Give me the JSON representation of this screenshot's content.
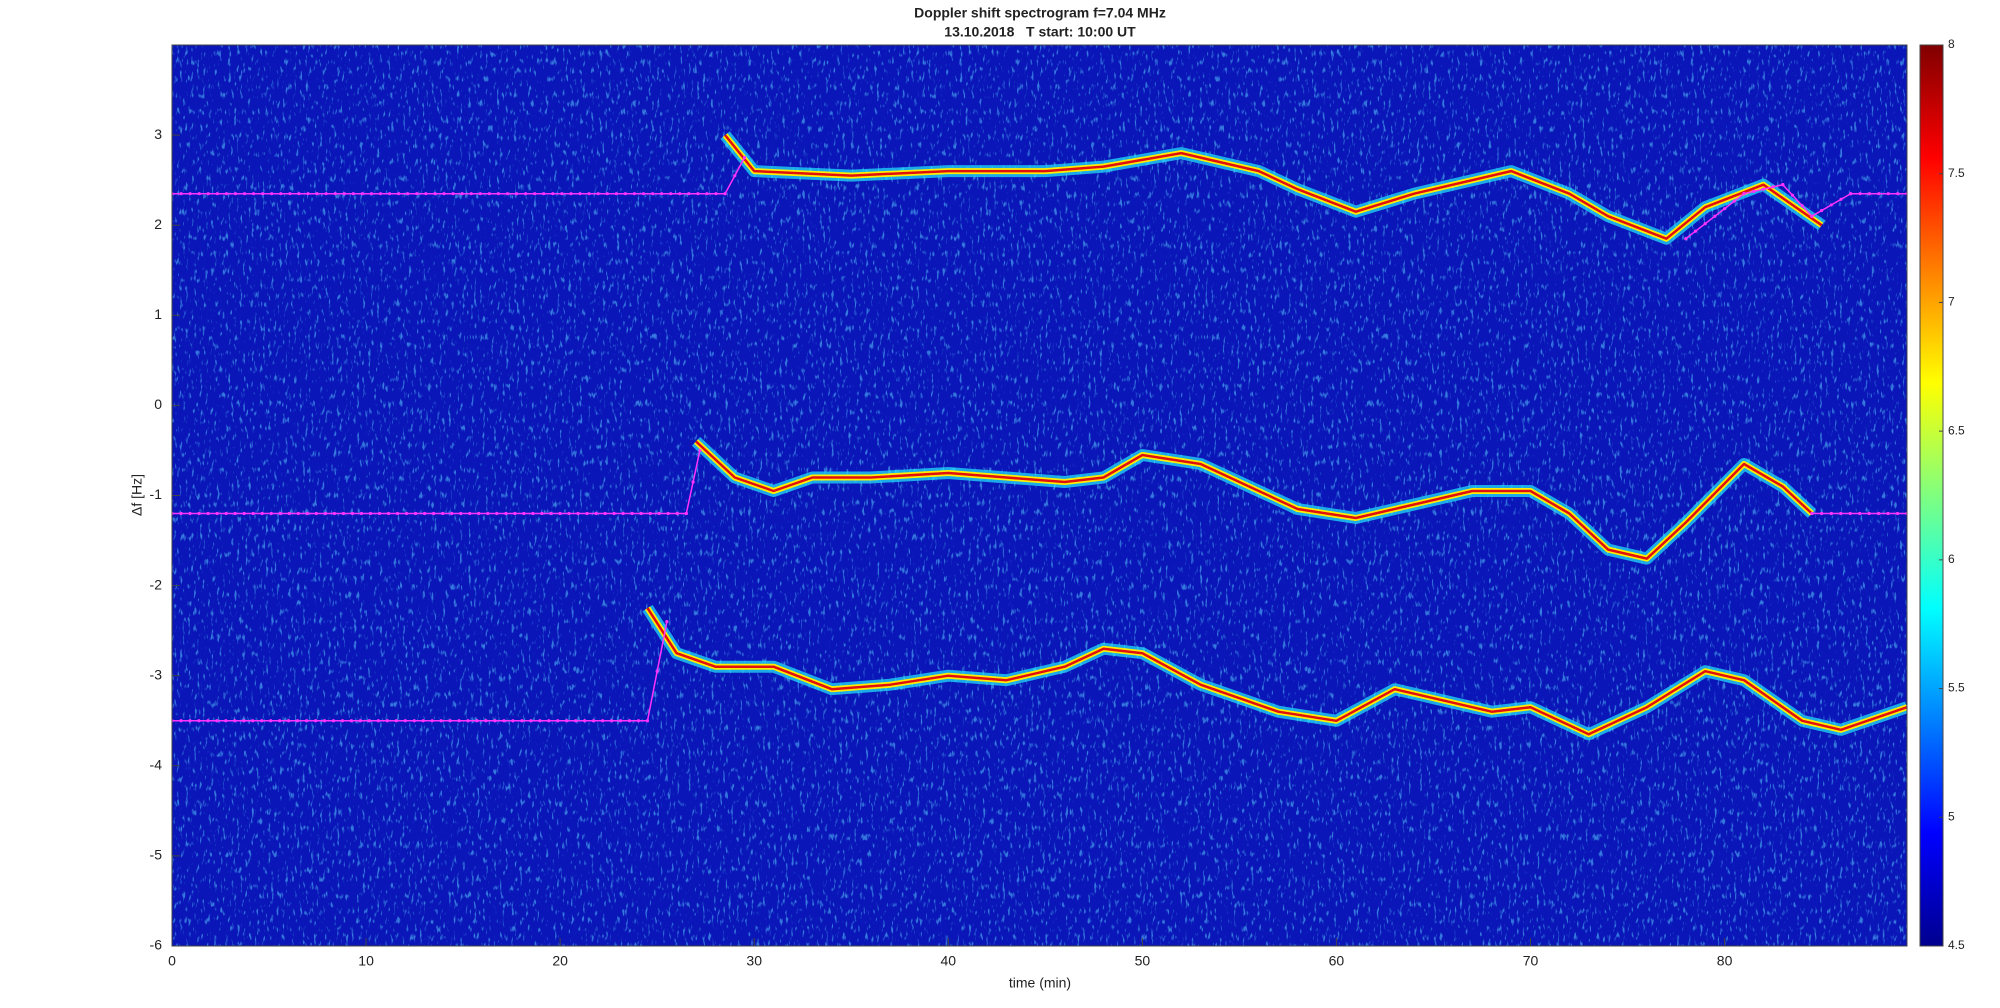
{
  "chart_data": {
    "type": "spectrogram",
    "title": "Doppler shift spectrogram f=7.04 MHz",
    "subtitle": "13.10.2018   T start: 10:00 UT",
    "xlabel": "time (min)",
    "ylabel": "Δf [Hz]",
    "xlim": [
      0,
      89.4
    ],
    "ylim": [
      -6,
      4
    ],
    "xticks": [
      0,
      10,
      20,
      30,
      40,
      50,
      60,
      70,
      80
    ],
    "yticks": [
      -6,
      -5,
      -4,
      -3,
      -2,
      -1,
      0,
      1,
      2,
      3
    ],
    "background": "#0a16b8",
    "clim": [
      4.5,
      8
    ],
    "cticks": [
      4.5,
      5,
      5.5,
      6,
      6.5,
      7,
      7.5,
      8
    ],
    "series": [
      {
        "color": "#e01010",
        "x": [
          28.5,
          30,
          35,
          40,
          45,
          48,
          52,
          56,
          58,
          61,
          64,
          69,
          72,
          74,
          77,
          79,
          82,
          85
        ],
        "values": [
          3.0,
          2.6,
          2.55,
          2.6,
          2.6,
          2.65,
          2.8,
          2.6,
          2.4,
          2.15,
          2.35,
          2.6,
          2.35,
          2.1,
          1.85,
          2.2,
          2.45,
          2.0
        ]
      },
      {
        "color": "#e01010",
        "x": [
          27,
          29,
          31,
          33,
          36,
          40,
          43,
          46,
          48,
          50,
          53,
          56,
          58,
          61,
          64,
          67,
          70,
          72,
          74,
          76,
          78,
          81,
          83,
          84.5
        ],
        "values": [
          -0.4,
          -0.8,
          -0.95,
          -0.8,
          -0.8,
          -0.75,
          -0.8,
          -0.85,
          -0.8,
          -0.55,
          -0.65,
          -0.95,
          -1.15,
          -1.25,
          -1.1,
          -0.95,
          -0.95,
          -1.2,
          -1.6,
          -1.7,
          -1.3,
          -0.65,
          -0.9,
          -1.2
        ]
      },
      {
        "color": "#e01010",
        "x": [
          24.5,
          26,
          28,
          31,
          34,
          37,
          40,
          43,
          46,
          48,
          50,
          53,
          57,
          60,
          63,
          65,
          68,
          70,
          73,
          76,
          79,
          81,
          84,
          86,
          89.4
        ],
        "values": [
          -2.25,
          -2.75,
          -2.9,
          -2.9,
          -3.15,
          -3.1,
          -3.0,
          -3.05,
          -2.9,
          -2.7,
          -2.75,
          -3.1,
          -3.4,
          -3.5,
          -3.15,
          -3.25,
          -3.4,
          -3.35,
          -3.65,
          -3.35,
          -2.95,
          -3.05,
          -3.5,
          -3.6,
          -3.35
        ]
      },
      {
        "color": "#ff33ff",
        "marker": true,
        "x": [
          0,
          28.5,
          29.5,
          null,
          78,
          81,
          83,
          84.5,
          86.5,
          89.4
        ],
        "values": [
          2.35,
          2.35,
          2.75,
          null,
          1.85,
          2.35,
          2.45,
          2.1,
          2.35,
          2.35
        ]
      },
      {
        "color": "#ff33ff",
        "marker": true,
        "x": [
          0,
          26.5,
          27.2,
          null,
          84.5,
          85.5,
          89.4
        ],
        "values": [
          -1.2,
          -1.2,
          -0.5,
          null,
          -1.2,
          -1.2,
          -1.2
        ]
      },
      {
        "color": "#ff33ff",
        "marker": true,
        "x": [
          0,
          24.5,
          25.5
        ],
        "values": [
          -3.5,
          -3.5,
          -2.4
        ]
      }
    ]
  }
}
